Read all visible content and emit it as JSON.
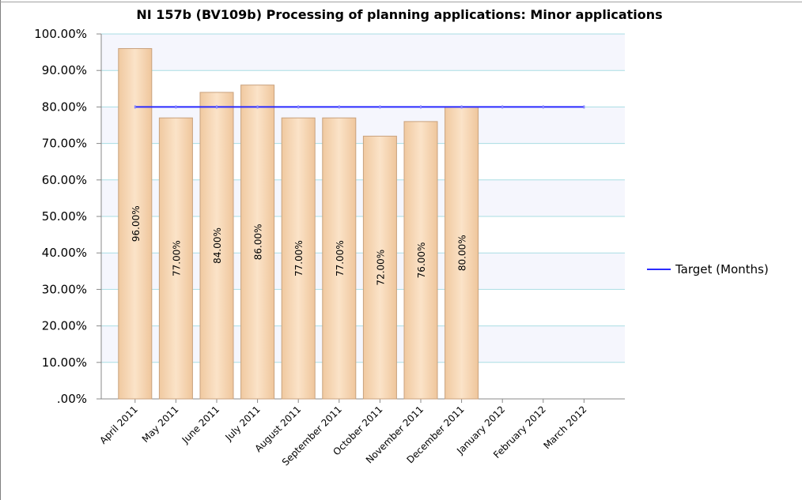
{
  "chart_data": {
    "type": "bar-line",
    "title": "NI 157b (BV109b) Processing of planning applications: Minor applications",
    "categories": [
      "April 2011",
      "May 2011",
      "June 2011",
      "July 2011",
      "August 2011",
      "September 2011",
      "October 2011",
      "November 2011",
      "December 2011",
      "January 2012",
      "February 2012",
      "March 2012"
    ],
    "series": [
      {
        "type": "bar",
        "color": "#f5d3ad",
        "values": [
          96,
          77,
          84,
          86,
          77,
          77,
          72,
          76,
          80,
          null,
          null,
          null
        ],
        "value_labels": [
          "96.00%",
          "77.00%",
          "84.00%",
          "86.00%",
          "77.00%",
          "77.00%",
          "72.00%",
          "76.00%",
          "80.00%",
          null,
          null,
          null
        ]
      },
      {
        "type": "line",
        "name": "Target (Months)",
        "color": "#2b2bff",
        "values": [
          80,
          80,
          80,
          80,
          80,
          80,
          80,
          80,
          80,
          80,
          80,
          80
        ]
      }
    ],
    "ylim": [
      0,
      100
    ],
    "yticks": [
      {
        "value": 0,
        "label": ".00%"
      },
      {
        "value": 10,
        "label": "10.00%"
      },
      {
        "value": 20,
        "label": "20.00%"
      },
      {
        "value": 30,
        "label": "30.00%"
      },
      {
        "value": 40,
        "label": "40.00%"
      },
      {
        "value": 50,
        "label": "50.00%"
      },
      {
        "value": 60,
        "label": "60.00%"
      },
      {
        "value": 70,
        "label": "70.00%"
      },
      {
        "value": 80,
        "label": "80.00%"
      },
      {
        "value": 90,
        "label": "90.00%"
      },
      {
        "value": 100,
        "label": "100.00%"
      }
    ],
    "grid": true,
    "legend": "right"
  }
}
